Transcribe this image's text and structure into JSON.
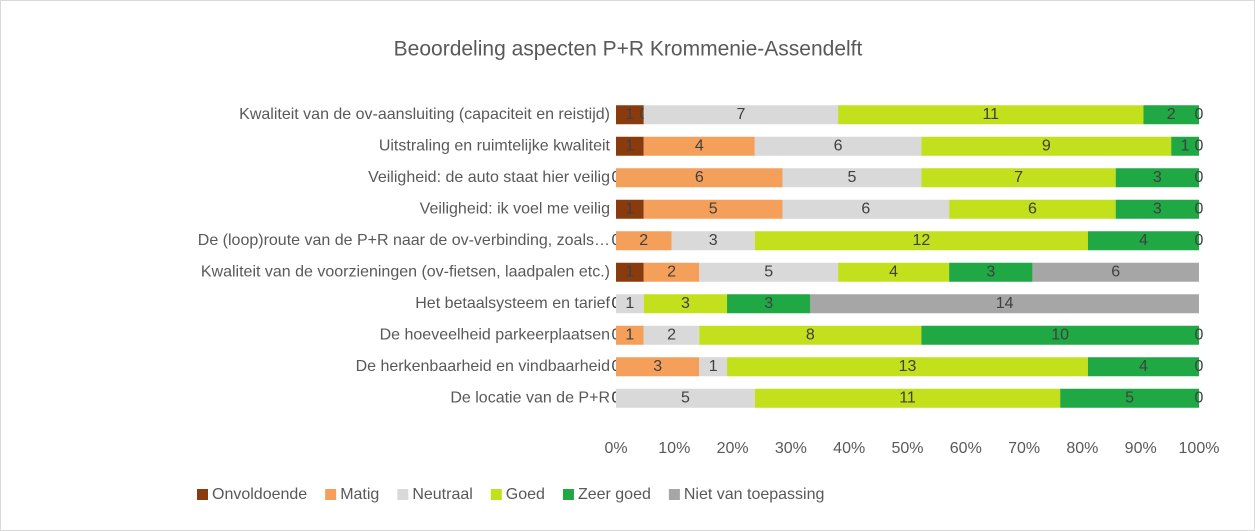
{
  "chart_data": {
    "type": "stacked-barh-percent",
    "title": "Beoordeling aspecten P+R Krommenie-Assendelft",
    "categories": [
      "Kwaliteit van de ov-aansluiting (capaciteit en reistijd)",
      "Uitstraling en ruimtelijke kwaliteit",
      "Veiligheid: de auto staat hier veilig",
      "Veiligheid: ik voel me veilig",
      "De (loop)route van de P+R naar de ov-verbinding, zoals…",
      "Kwaliteit van de voorzieningen (ov-fietsen, laadpalen etc.)",
      "Het betaalsysteem en tarief",
      "De hoeveelheid parkeerplaatsen",
      "De herkenbaarheid en vindbaarheid",
      "De locatie van de P+R"
    ],
    "series": [
      {
        "name": "Onvoldoende",
        "color": "#8a3b0d",
        "values": [
          1,
          1,
          0,
          1,
          0,
          1,
          0,
          0,
          0,
          0
        ]
      },
      {
        "name": "Matig",
        "color": "#f4a05a",
        "values": [
          0,
          4,
          6,
          5,
          2,
          2,
          0,
          1,
          3,
          0
        ]
      },
      {
        "name": "Neutraal",
        "color": "#d9d9d9",
        "values": [
          7,
          6,
          5,
          6,
          3,
          5,
          1,
          2,
          1,
          5
        ]
      },
      {
        "name": "Goed",
        "color": "#c2e01c",
        "values": [
          11,
          9,
          7,
          6,
          12,
          4,
          3,
          8,
          13,
          11
        ]
      },
      {
        "name": "Zeer goed",
        "color": "#1fa843",
        "values": [
          2,
          1,
          3,
          3,
          4,
          3,
          3,
          10,
          4,
          5
        ]
      },
      {
        "name": "Niet van toepassing",
        "color": "#a6a6a6",
        "values": [
          0,
          0,
          0,
          0,
          0,
          6,
          14,
          0,
          0,
          0
        ]
      }
    ],
    "xlim": [
      0,
      100
    ],
    "xticks": [
      {
        "value": 0,
        "label": "0%"
      },
      {
        "value": 10,
        "label": "10%"
      },
      {
        "value": 20,
        "label": "20%"
      },
      {
        "value": 30,
        "label": "30%"
      },
      {
        "value": 40,
        "label": "40%"
      },
      {
        "value": 50,
        "label": "50%"
      },
      {
        "value": 60,
        "label": "60%"
      },
      {
        "value": 70,
        "label": "70%"
      },
      {
        "value": 80,
        "label": "80%"
      },
      {
        "value": 90,
        "label": "90%"
      },
      {
        "value": 100,
        "label": "100%"
      }
    ],
    "legend": "bottom"
  }
}
